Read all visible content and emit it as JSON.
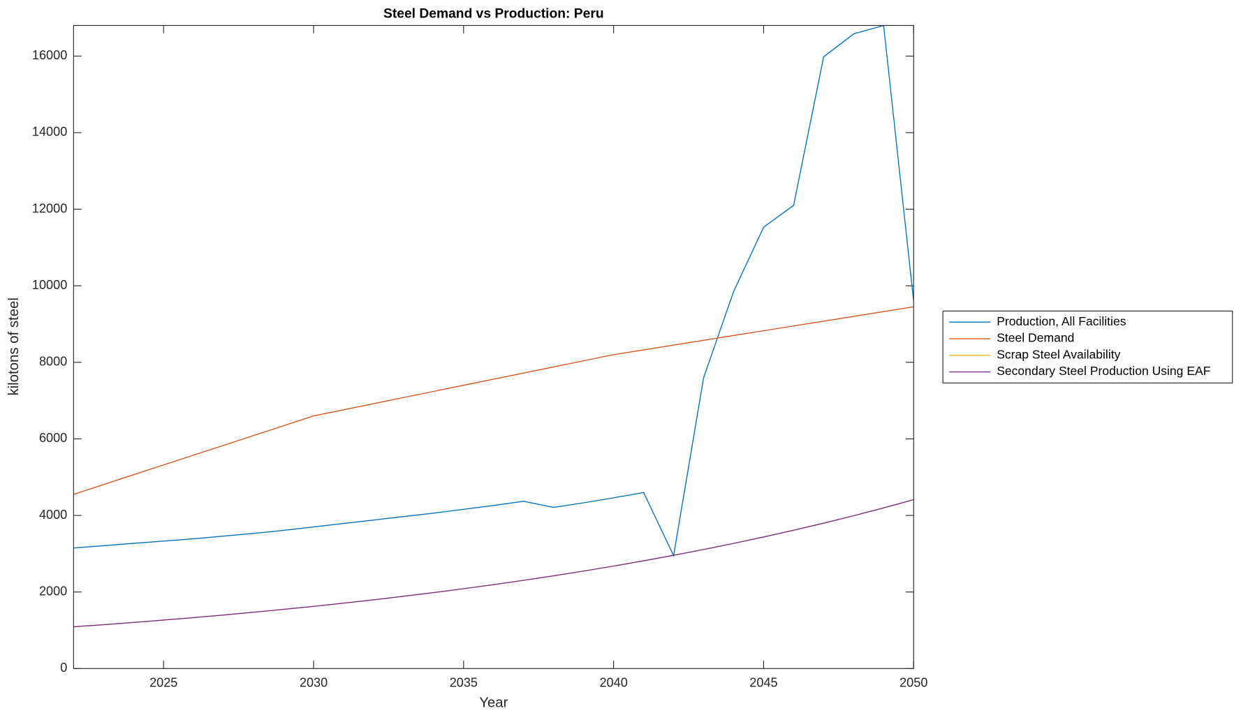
{
  "chart_data": {
    "type": "line",
    "title": "Steel Demand vs Production: Peru",
    "x_label": "Year",
    "y_label": "kilotons of steel",
    "x": [
      2022,
      2023,
      2024,
      2025,
      2026,
      2027,
      2028,
      2029,
      2030,
      2031,
      2032,
      2033,
      2034,
      2035,
      2036,
      2037,
      2038,
      2039,
      2040,
      2041,
      2042,
      2043,
      2044,
      2045,
      2046,
      2047,
      2048,
      2049,
      2050
    ],
    "series": [
      {
        "name": "Production, All Facilities",
        "color": "#0072bd",
        "values": [
          3150,
          3210,
          3270,
          3330,
          3390,
          3460,
          3530,
          3610,
          3700,
          3790,
          3880,
          3970,
          4060,
          4160,
          4260,
          4370,
          4210,
          4330,
          4460,
          4600,
          2950,
          7600,
          9850,
          11530,
          12100,
          15980,
          16580,
          16800,
          9600
        ]
      },
      {
        "name": "Steel Demand",
        "color": "#d95319",
        "values": [
          4550,
          4806,
          5063,
          5319,
          5575,
          5831,
          6088,
          6344,
          6600,
          6760,
          6920,
          7080,
          7240,
          7400,
          7560,
          7720,
          7880,
          8040,
          8200,
          8325,
          8450,
          8575,
          8700,
          8825,
          8950,
          9075,
          9200,
          9325,
          9450
        ]
      },
      {
        "name": "Scrap Steel Availability",
        "color": "#edb120",
        "values": [
          1090,
          1146,
          1204,
          1266,
          1331,
          1399,
          1471,
          1546,
          1625,
          1708,
          1796,
          1888,
          1984,
          2086,
          2193,
          2305,
          2423,
          2547,
          2677,
          2814,
          2959,
          3110,
          3270,
          3437,
          3613,
          3798,
          3993,
          4197,
          4412
        ]
      },
      {
        "name": "Secondary Steel Production Using EAF",
        "color": "#7e2f8e",
        "values": [
          1090,
          1146,
          1204,
          1266,
          1331,
          1399,
          1471,
          1546,
          1625,
          1708,
          1796,
          1888,
          1984,
          2086,
          2193,
          2305,
          2423,
          2547,
          2677,
          2814,
          2959,
          3110,
          3270,
          3437,
          3613,
          3798,
          3993,
          4197,
          4412
        ]
      }
    ],
    "xlim": [
      2022,
      2050
    ],
    "xticks": [
      2025,
      2030,
      2035,
      2040,
      2045,
      2050
    ],
    "ylim": [
      0,
      16800
    ],
    "yticks": [
      0,
      2000,
      4000,
      6000,
      8000,
      10000,
      12000,
      14000,
      16000
    ],
    "legend": "outside-right"
  }
}
